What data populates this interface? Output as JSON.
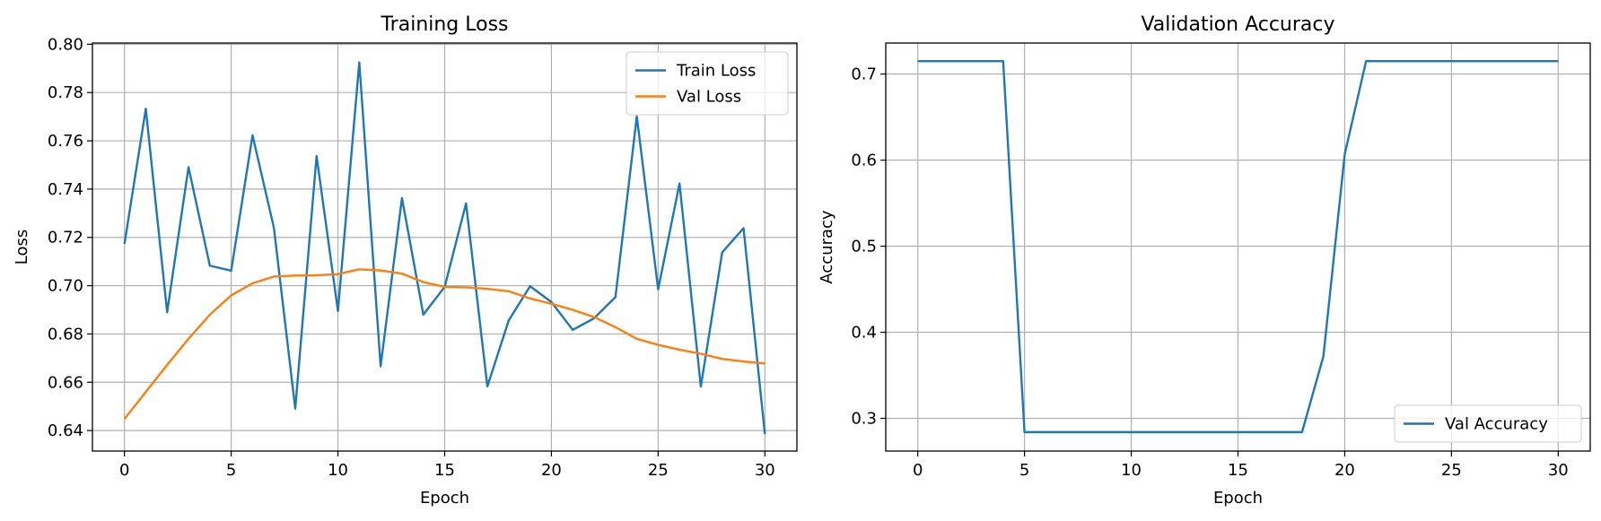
{
  "chart_data": [
    {
      "type": "line",
      "title": "Training Loss",
      "xlabel": "Epoch",
      "ylabel": "Loss",
      "xlim": [
        -1.5,
        31.5
      ],
      "ylim": [
        0.6315,
        0.8005
      ],
      "xticks": [
        0,
        5,
        10,
        15,
        20,
        25,
        30
      ],
      "xtick_labels": [
        "0",
        "5",
        "10",
        "15",
        "20",
        "25",
        "30"
      ],
      "yticks": [
        0.64,
        0.66,
        0.68,
        0.7,
        0.72,
        0.74,
        0.76,
        0.78,
        0.8
      ],
      "ytick_labels": [
        "0.64",
        "0.66",
        "0.68",
        "0.70",
        "0.72",
        "0.74",
        "0.76",
        "0.78",
        "0.80"
      ],
      "grid": true,
      "legend_position": "top-right",
      "x": [
        0,
        1,
        2,
        3,
        4,
        5,
        6,
        7,
        8,
        9,
        10,
        11,
        12,
        13,
        14,
        15,
        16,
        17,
        18,
        19,
        20,
        21,
        22,
        23,
        24,
        25,
        26,
        27,
        28,
        29,
        30
      ],
      "series": [
        {
          "name": "Train Loss",
          "color": "#1f77b4",
          "values": [
            0.7173,
            0.7733,
            0.689,
            0.7491,
            0.7083,
            0.7062,
            0.7623,
            0.724,
            0.6491,
            0.7537,
            0.6895,
            0.7925,
            0.6666,
            0.7363,
            0.688,
            0.6995,
            0.7341,
            0.6583,
            0.6856,
            0.6998,
            0.6932,
            0.6817,
            0.6865,
            0.6953,
            0.7701,
            0.6985,
            0.7423,
            0.6582,
            0.7138,
            0.7238,
            0.6385
          ]
        },
        {
          "name": "Val Loss",
          "color": "#ff7f0e",
          "values": [
            0.6448,
            0.656,
            0.6672,
            0.678,
            0.688,
            0.696,
            0.701,
            0.7038,
            0.7042,
            0.7043,
            0.7048,
            0.7068,
            0.7063,
            0.705,
            0.7015,
            0.6995,
            0.6993,
            0.6987,
            0.6977,
            0.6947,
            0.6925,
            0.69,
            0.687,
            0.6828,
            0.678,
            0.6755,
            0.6735,
            0.6718,
            0.6697,
            0.6686,
            0.6678
          ]
        }
      ]
    },
    {
      "type": "line",
      "title": "Validation Accuracy",
      "xlabel": "Epoch",
      "ylabel": "Accuracy",
      "xlim": [
        -1.5,
        31.5
      ],
      "ylim": [
        0.262,
        0.736
      ],
      "xticks": [
        0,
        5,
        10,
        15,
        20,
        25,
        30
      ],
      "xtick_labels": [
        "0",
        "5",
        "10",
        "15",
        "20",
        "25",
        "30"
      ],
      "yticks": [
        0.3,
        0.4,
        0.5,
        0.6,
        0.7
      ],
      "ytick_labels": [
        "0.3",
        "0.4",
        "0.5",
        "0.6",
        "0.7"
      ],
      "grid": true,
      "legend_position": "bottom-right",
      "x": [
        0,
        1,
        2,
        3,
        4,
        5,
        6,
        7,
        8,
        9,
        10,
        11,
        12,
        13,
        14,
        15,
        16,
        17,
        18,
        19,
        20,
        21,
        22,
        23,
        24,
        25,
        26,
        27,
        28,
        29,
        30
      ],
      "series": [
        {
          "name": "Val Accuracy",
          "color": "#1f77b4",
          "values": [
            0.715,
            0.715,
            0.715,
            0.715,
            0.715,
            0.284,
            0.284,
            0.284,
            0.284,
            0.284,
            0.284,
            0.284,
            0.284,
            0.284,
            0.284,
            0.284,
            0.284,
            0.284,
            0.284,
            0.372,
            0.607,
            0.715,
            0.715,
            0.715,
            0.715,
            0.715,
            0.715,
            0.715,
            0.715,
            0.715,
            0.715
          ]
        }
      ]
    }
  ]
}
